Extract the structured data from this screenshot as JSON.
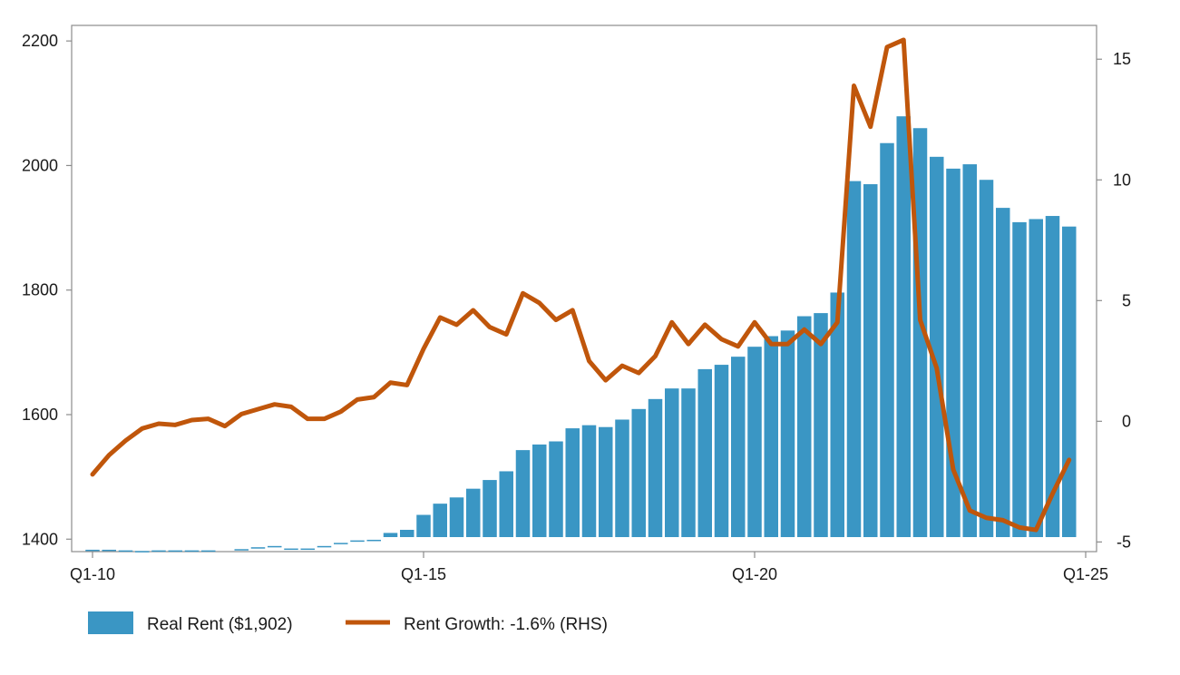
{
  "chart_data": {
    "type": "bar+line",
    "title": "",
    "xlabel": "",
    "ylabel_left": "",
    "ylabel_right": "",
    "x_tick_labels": [
      "Q1-10",
      "Q1-15",
      "Q1-20",
      "Q1-25"
    ],
    "y_left": {
      "range": [
        1380,
        2225
      ],
      "ticks": [
        1400,
        1600,
        1800,
        2000,
        2200
      ]
    },
    "y_right": {
      "range": [
        -5.4,
        16.4
      ],
      "ticks": [
        -5,
        0,
        5,
        10,
        15
      ]
    },
    "grid": false,
    "legend_position": "bottom-left",
    "colors": {
      "bars": "#3a96c4",
      "line": "#c0560b",
      "axis": "#8c8c8c"
    },
    "bar_series": {
      "name": "Real Rent ($1,902)",
      "values": [
        1383,
        1383,
        1382,
        1381,
        1382,
        1382,
        1382,
        1382,
        null,
        1384,
        1387,
        1389,
        1385,
        1385,
        1389,
        1394,
        1398,
        1399,
        1410,
        1415,
        1439,
        1457,
        1467,
        1481,
        1495,
        1509,
        1543,
        1552,
        1557,
        1578,
        1583,
        1580,
        1592,
        1609,
        1625,
        1642,
        1642,
        1673,
        1680,
        1693,
        1709,
        1726,
        1735,
        1758,
        1763,
        1796,
        1975,
        1970,
        2036,
        2079,
        2060,
        2014,
        1995,
        2002,
        1977,
        1932,
        1909,
        1914,
        1919,
        1902
      ]
    },
    "line_series": {
      "name": "Rent Growth: -1.6% (RHS)",
      "values": [
        -2.2,
        -1.4,
        -0.8,
        -0.3,
        -0.1,
        -0.15,
        0.05,
        0.1,
        -0.2,
        0.3,
        0.5,
        0.7,
        0.6,
        0.1,
        0.1,
        0.4,
        0.9,
        1.0,
        1.6,
        1.5,
        3.0,
        4.3,
        4.0,
        4.6,
        3.9,
        3.6,
        5.3,
        4.9,
        4.2,
        4.6,
        2.5,
        1.7,
        2.3,
        2.0,
        2.7,
        4.1,
        3.2,
        4.0,
        3.4,
        3.1,
        4.1,
        3.2,
        3.2,
        3.8,
        3.2,
        4.1,
        13.9,
        12.2,
        15.5,
        15.8,
        4.2,
        2.2,
        -2.0,
        -3.7,
        -4.0,
        -4.1,
        -4.4,
        -4.5,
        -3.0,
        -1.6
      ]
    }
  },
  "legend": {
    "bar_label": "Real Rent ($1,902)",
    "line_label": "Rent Growth: -1.6% (RHS)"
  }
}
